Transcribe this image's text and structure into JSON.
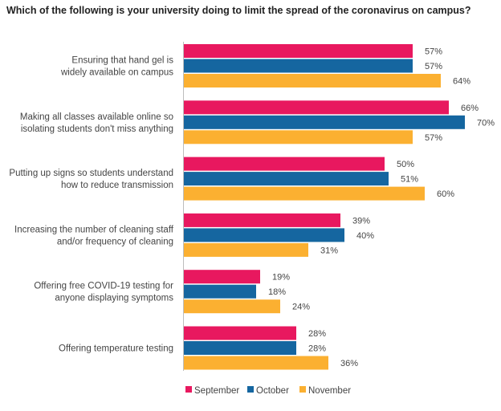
{
  "title": "Which of the following is your university doing to limit the spread of the coronavirus on campus?",
  "colors": {
    "September": "#e8185f",
    "October": "#1566a0",
    "November": "#fbb031"
  },
  "chart_data": {
    "type": "bar",
    "orientation": "horizontal",
    "title": "Which of the following is your university doing to limit the spread of the coronavirus on campus?",
    "categories": [
      [
        "Ensuring that hand gel is",
        "widely available on campus"
      ],
      [
        "Making all classes available online so",
        "isolating students don't miss anything"
      ],
      [
        "Putting up signs so students understand",
        "how to reduce transmission"
      ],
      [
        "Increasing the number of cleaning staff",
        "and/or frequency of cleaning"
      ],
      [
        "Offering free COVID-19 testing for",
        "anyone displaying symptoms"
      ],
      [
        "Offering temperature testing"
      ]
    ],
    "series": [
      {
        "name": "September",
        "values": [
          57,
          66,
          50,
          39,
          19,
          28
        ]
      },
      {
        "name": "October",
        "values": [
          57,
          70,
          51,
          40,
          18,
          28
        ]
      },
      {
        "name": "November",
        "values": [
          64,
          57,
          60,
          31,
          24,
          36
        ]
      }
    ],
    "value_suffix": "%",
    "xlim": [
      0,
      100
    ],
    "grid": false,
    "legend": "bottom-center"
  }
}
